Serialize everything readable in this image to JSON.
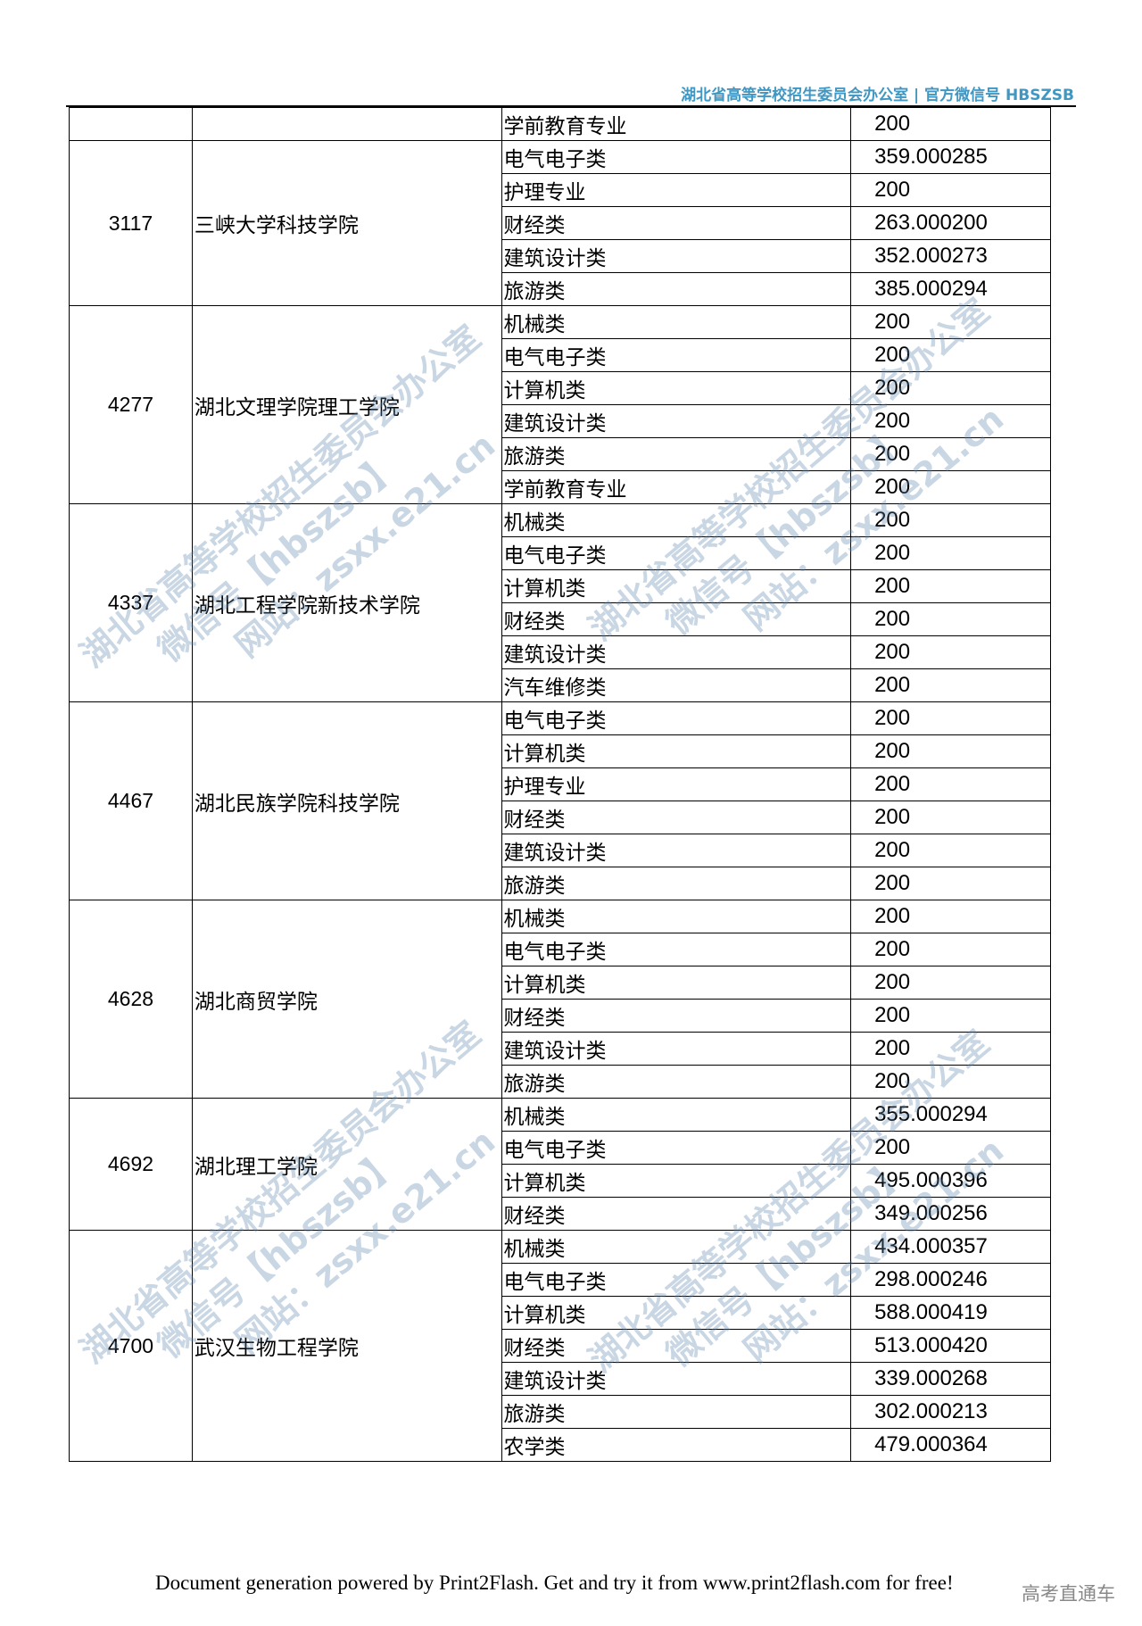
{
  "header": {
    "text": "湖北省高等学校招生委员会办公室  |  官方微信号 HBSZSB"
  },
  "table": {
    "groups": [
      {
        "code": "",
        "name": "",
        "rows": [
          [
            "学前教育专业",
            "200"
          ]
        ]
      },
      {
        "code": "3117",
        "name": "三峡大学科技学院",
        "rows": [
          [
            "电气电子类",
            "359.000285"
          ],
          [
            "护理专业",
            "200"
          ],
          [
            "财经类",
            "263.000200"
          ],
          [
            "建筑设计类",
            "352.000273"
          ],
          [
            "旅游类",
            "385.000294"
          ]
        ]
      },
      {
        "code": "4277",
        "name": "湖北文理学院理工学院",
        "rows": [
          [
            "机械类",
            "200"
          ],
          [
            "电气电子类",
            "200"
          ],
          [
            "计算机类",
            "200"
          ],
          [
            "建筑设计类",
            "200"
          ],
          [
            "旅游类",
            "200"
          ],
          [
            "学前教育专业",
            "200"
          ]
        ]
      },
      {
        "code": "4337",
        "name": "湖北工程学院新技术学院",
        "rows": [
          [
            "机械类",
            "200"
          ],
          [
            "电气电子类",
            "200"
          ],
          [
            "计算机类",
            "200"
          ],
          [
            "财经类",
            "200"
          ],
          [
            "建筑设计类",
            "200"
          ],
          [
            "汽车维修类",
            "200"
          ]
        ]
      },
      {
        "code": "4467",
        "name": "湖北民族学院科技学院",
        "rows": [
          [
            "电气电子类",
            "200"
          ],
          [
            "计算机类",
            "200"
          ],
          [
            "护理专业",
            "200"
          ],
          [
            "财经类",
            "200"
          ],
          [
            "建筑设计类",
            "200"
          ],
          [
            "旅游类",
            "200"
          ]
        ]
      },
      {
        "code": "4628",
        "name": "湖北商贸学院",
        "rows": [
          [
            "机械类",
            "200"
          ],
          [
            "电气电子类",
            "200"
          ],
          [
            "计算机类",
            "200"
          ],
          [
            "财经类",
            "200"
          ],
          [
            "建筑设计类",
            "200"
          ],
          [
            "旅游类",
            "200"
          ]
        ]
      },
      {
        "code": "4692",
        "name": "湖北理工学院",
        "rows": [
          [
            "机械类",
            "355.000294"
          ],
          [
            "电气电子类",
            "200"
          ],
          [
            "计算机类",
            "495.000396"
          ],
          [
            "财经类",
            "349.000256"
          ]
        ]
      },
      {
        "code": "4700",
        "name": "武汉生物工程学院",
        "rows": [
          [
            "机械类",
            "434.000357"
          ],
          [
            "电气电子类",
            "298.000246"
          ],
          [
            "计算机类",
            "588.000419"
          ],
          [
            "财经类",
            "513.000420"
          ],
          [
            "建筑设计类",
            "339.000268"
          ],
          [
            "旅游类",
            "302.000213"
          ],
          [
            "农学类",
            "479.000364"
          ]
        ]
      }
    ]
  },
  "watermark": {
    "lines": [
      "湖北省高等学校招生委员会办公室",
      "微信号【hbszsb】",
      "网站：zsxx.e21.cn"
    ],
    "color": "#5a82aa"
  },
  "footer": {
    "text": "Document generation powered by Print2Flash. Get and try it from www.print2flash.com for free!",
    "brand": "高考直通车"
  }
}
